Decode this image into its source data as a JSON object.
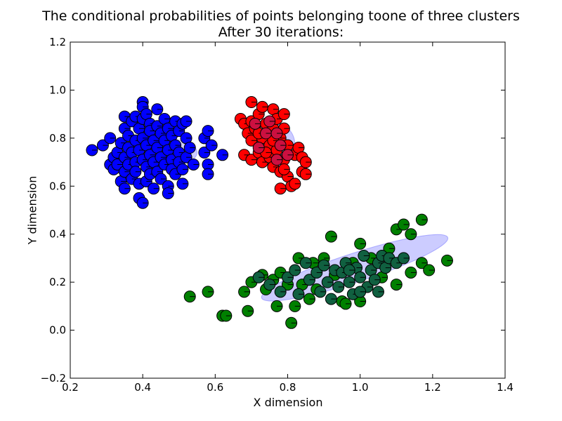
{
  "chart_data": {
    "type": "scatter",
    "title": "The conditional probabilities of points belonging toone of three clusters",
    "subtitle": "After 30 iterations:",
    "xlabel": "X dimension",
    "ylabel": "Y dimension",
    "xlim": [
      0.2,
      1.4
    ],
    "ylim": [
      -0.2,
      1.2
    ],
    "xticks": [
      "0.2",
      "0.4",
      "0.6",
      "0.8",
      "1.0",
      "1.2",
      "1.4"
    ],
    "yticks": [
      "−0.2",
      "0.0",
      "0.2",
      "0.4",
      "0.6",
      "0.8",
      "1.0",
      "1.2"
    ],
    "grid": false,
    "colors": {
      "blue": "#0000ff",
      "red": "#ff0000",
      "green": "#008000",
      "mixed_red": "#cc1040",
      "mixed_green": "#106040",
      "ellipse_fill": "#8080ff"
    },
    "ellipses": [
      {
        "cx": 0.45,
        "cy": 0.74,
        "rx": 0.1,
        "ry": 0.06,
        "angle": 0
      },
      {
        "cx": 0.77,
        "cy": 0.77,
        "rx": 0.05,
        "ry": 0.09,
        "angle": 0
      },
      {
        "cx": 0.985,
        "cy": 0.26,
        "rx": 0.27,
        "ry": 0.06,
        "angle": 18
      }
    ],
    "series": [
      {
        "color": "#0000ff",
        "points": [
          [
            0.26,
            0.75
          ],
          [
            0.29,
            0.77
          ],
          [
            0.31,
            0.8
          ],
          [
            0.31,
            0.69
          ],
          [
            0.32,
            0.72
          ],
          [
            0.32,
            0.67
          ],
          [
            0.33,
            0.74
          ],
          [
            0.33,
            0.69
          ],
          [
            0.34,
            0.78
          ],
          [
            0.34,
            0.62
          ],
          [
            0.35,
            0.89
          ],
          [
            0.35,
            0.84
          ],
          [
            0.35,
            0.72
          ],
          [
            0.35,
            0.66
          ],
          [
            0.35,
            0.59
          ],
          [
            0.36,
            0.81
          ],
          [
            0.36,
            0.76
          ],
          [
            0.36,
            0.69
          ],
          [
            0.37,
            0.87
          ],
          [
            0.37,
            0.74
          ],
          [
            0.37,
            0.63
          ],
          [
            0.38,
            0.89
          ],
          [
            0.38,
            0.79
          ],
          [
            0.38,
            0.7
          ],
          [
            0.38,
            0.66
          ],
          [
            0.39,
            0.84
          ],
          [
            0.39,
            0.75
          ],
          [
            0.39,
            0.61
          ],
          [
            0.39,
            0.55
          ],
          [
            0.4,
            0.95
          ],
          [
            0.4,
            0.93
          ],
          [
            0.4,
            0.88
          ],
          [
            0.4,
            0.8
          ],
          [
            0.4,
            0.71
          ],
          [
            0.4,
            0.53
          ],
          [
            0.41,
            0.9
          ],
          [
            0.41,
            0.77
          ],
          [
            0.41,
            0.68
          ],
          [
            0.41,
            0.62
          ],
          [
            0.42,
            0.86
          ],
          [
            0.42,
            0.83
          ],
          [
            0.42,
            0.73
          ],
          [
            0.42,
            0.65
          ],
          [
            0.43,
            0.79
          ],
          [
            0.43,
            0.7
          ],
          [
            0.43,
            0.59
          ],
          [
            0.44,
            0.92
          ],
          [
            0.44,
            0.85
          ],
          [
            0.44,
            0.76
          ],
          [
            0.44,
            0.66
          ],
          [
            0.45,
            0.82
          ],
          [
            0.45,
            0.72
          ],
          [
            0.45,
            0.63
          ],
          [
            0.46,
            0.88
          ],
          [
            0.46,
            0.79
          ],
          [
            0.46,
            0.69
          ],
          [
            0.47,
            0.84
          ],
          [
            0.47,
            0.75
          ],
          [
            0.47,
            0.6
          ],
          [
            0.47,
            0.57
          ],
          [
            0.48,
            0.81
          ],
          [
            0.48,
            0.71
          ],
          [
            0.48,
            0.67
          ],
          [
            0.49,
            0.87
          ],
          [
            0.49,
            0.77
          ],
          [
            0.49,
            0.65
          ],
          [
            0.5,
            0.83
          ],
          [
            0.5,
            0.74
          ],
          [
            0.5,
            0.7
          ],
          [
            0.51,
            0.86
          ],
          [
            0.51,
            0.67
          ],
          [
            0.51,
            0.61
          ],
          [
            0.52,
            0.87
          ],
          [
            0.52,
            0.8
          ],
          [
            0.52,
            0.72
          ],
          [
            0.53,
            0.76
          ],
          [
            0.54,
            0.69
          ],
          [
            0.57,
            0.8
          ],
          [
            0.57,
            0.74
          ],
          [
            0.58,
            0.83
          ],
          [
            0.58,
            0.69
          ],
          [
            0.58,
            0.65
          ],
          [
            0.59,
            0.77
          ],
          [
            0.62,
            0.73
          ]
        ]
      },
      {
        "color": "#ff0000",
        "points": [
          [
            0.67,
            0.88
          ],
          [
            0.68,
            0.86
          ],
          [
            0.68,
            0.73
          ],
          [
            0.69,
            0.82
          ],
          [
            0.7,
            0.95
          ],
          [
            0.7,
            0.87
          ],
          [
            0.7,
            0.79
          ],
          [
            0.7,
            0.71
          ],
          [
            0.71,
            0.84
          ],
          [
            0.72,
            0.9
          ],
          [
            0.72,
            0.74
          ],
          [
            0.73,
            0.93
          ],
          [
            0.73,
            0.8
          ],
          [
            0.73,
            0.7
          ],
          [
            0.74,
            0.86
          ],
          [
            0.75,
            0.77
          ],
          [
            0.75,
            0.72
          ],
          [
            0.76,
            0.92
          ],
          [
            0.76,
            0.84
          ],
          [
            0.76,
            0.68
          ],
          [
            0.77,
            0.88
          ],
          [
            0.77,
            0.75
          ],
          [
            0.78,
            0.8
          ],
          [
            0.78,
            0.66
          ],
          [
            0.78,
            0.59
          ],
          [
            0.79,
            0.9
          ],
          [
            0.79,
            0.84
          ],
          [
            0.79,
            0.71
          ],
          [
            0.8,
            0.77
          ],
          [
            0.8,
            0.64
          ],
          [
            0.81,
            0.6
          ],
          [
            0.82,
            0.61
          ],
          [
            0.82,
            0.73
          ],
          [
            0.83,
            0.76
          ],
          [
            0.84,
            0.66
          ],
          [
            0.84,
            0.72
          ],
          [
            0.85,
            0.65
          ],
          [
            0.85,
            0.7
          ],
          [
            0.72,
            0.82
          ],
          [
            0.74,
            0.74
          ],
          [
            0.76,
            0.79
          ],
          [
            0.79,
            0.67
          ]
        ]
      },
      {
        "color": "#cc1040",
        "points": [
          [
            0.71,
            0.86
          ],
          [
            0.72,
            0.76
          ],
          [
            0.74,
            0.82
          ],
          [
            0.75,
            0.87
          ],
          [
            0.77,
            0.82
          ],
          [
            0.77,
            0.71
          ],
          [
            0.78,
            0.77
          ],
          [
            0.8,
            0.73
          ]
        ]
      },
      {
        "color": "#008000",
        "points": [
          [
            0.53,
            0.14
          ],
          [
            0.58,
            0.16
          ],
          [
            0.62,
            0.06
          ],
          [
            0.63,
            0.06
          ],
          [
            0.68,
            0.16
          ],
          [
            0.69,
            0.08
          ],
          [
            0.7,
            0.2
          ],
          [
            0.73,
            0.23
          ],
          [
            0.74,
            0.17
          ],
          [
            0.76,
            0.21
          ],
          [
            0.77,
            0.1
          ],
          [
            0.78,
            0.24
          ],
          [
            0.8,
            0.19
          ],
          [
            0.81,
            0.03
          ],
          [
            0.82,
            0.1
          ],
          [
            0.83,
            0.3
          ],
          [
            0.84,
            0.19
          ],
          [
            0.86,
            0.13
          ],
          [
            0.87,
            0.28
          ],
          [
            0.88,
            0.17
          ],
          [
            0.9,
            0.3
          ],
          [
            0.92,
            0.39
          ],
          [
            0.93,
            0.23
          ],
          [
            0.95,
            0.12
          ],
          [
            0.96,
            0.11
          ],
          [
            0.98,
            0.28
          ],
          [
            1.0,
            0.36
          ],
          [
            1.0,
            0.12
          ],
          [
            1.03,
            0.3
          ],
          [
            1.06,
            0.22
          ],
          [
            1.08,
            0.34
          ],
          [
            1.1,
            0.42
          ],
          [
            1.1,
            0.19
          ],
          [
            1.12,
            0.44
          ],
          [
            1.14,
            0.4
          ],
          [
            1.14,
            0.24
          ],
          [
            1.17,
            0.46
          ],
          [
            1.17,
            0.28
          ],
          [
            1.19,
            0.25
          ],
          [
            1.24,
            0.29
          ]
        ]
      },
      {
        "color": "#106040",
        "points": [
          [
            0.72,
            0.22
          ],
          [
            0.75,
            0.19
          ],
          [
            0.78,
            0.16
          ],
          [
            0.8,
            0.22
          ],
          [
            0.82,
            0.25
          ],
          [
            0.83,
            0.15
          ],
          [
            0.85,
            0.28
          ],
          [
            0.86,
            0.21
          ],
          [
            0.88,
            0.24
          ],
          [
            0.89,
            0.16
          ],
          [
            0.9,
            0.27
          ],
          [
            0.91,
            0.2
          ],
          [
            0.92,
            0.13
          ],
          [
            0.93,
            0.25
          ],
          [
            0.94,
            0.18
          ],
          [
            0.95,
            0.24
          ],
          [
            0.96,
            0.28
          ],
          [
            0.97,
            0.2
          ],
          [
            0.98,
            0.15
          ],
          [
            0.99,
            0.26
          ],
          [
            1.0,
            0.22
          ],
          [
            1.01,
            0.31
          ],
          [
            1.02,
            0.18
          ],
          [
            1.03,
            0.25
          ],
          [
            1.04,
            0.21
          ],
          [
            1.05,
            0.28
          ],
          [
            1.06,
            0.31
          ],
          [
            1.07,
            0.26
          ],
          [
            1.08,
            0.3
          ],
          [
            1.1,
            0.28
          ],
          [
            1.12,
            0.3
          ],
          [
            1.05,
            0.16
          ],
          [
            1.0,
            0.16
          ],
          [
            0.97,
            0.25
          ]
        ]
      }
    ]
  }
}
